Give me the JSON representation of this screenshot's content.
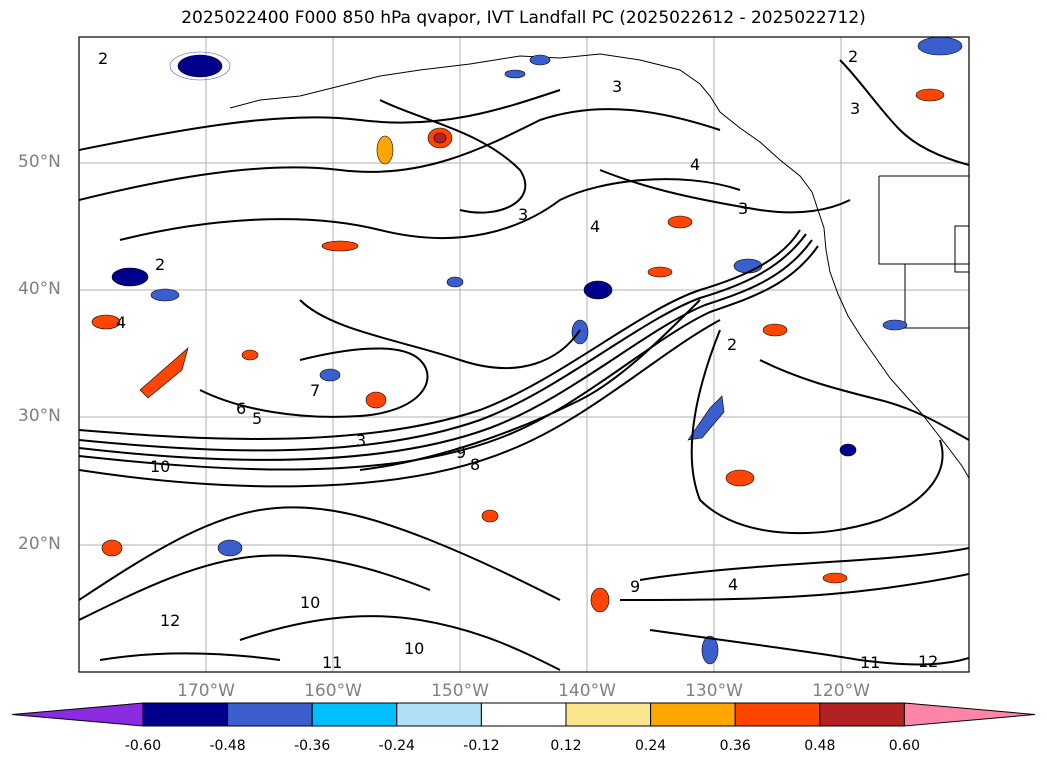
{
  "title": "2025022400 F000 850 hPa qvapor, IVT Landfall PC (2025022612 - 2025022712)",
  "map": {
    "lat_labels": [
      "50°N",
      "40°N",
      "30°N",
      "20°N"
    ],
    "lon_labels": [
      "170°W",
      "160°W",
      "150°W",
      "140°W",
      "130°W",
      "120°W"
    ],
    "lat_range": [
      10,
      60
    ],
    "lon_range": [
      -180,
      -110
    ],
    "gridlines": true,
    "contour_labels": [
      "2",
      "3",
      "4",
      "5",
      "6",
      "7",
      "8",
      "9",
      "10",
      "11",
      "12"
    ]
  },
  "colorbar": {
    "ticks": [
      "-0.60",
      "-0.48",
      "-0.36",
      "-0.24",
      "-0.12",
      "0.12",
      "0.24",
      "0.36",
      "0.48",
      "0.60"
    ],
    "colors": [
      "#8a2be2",
      "#00008b",
      "#3a5fcd",
      "#00bfff",
      "#b0e0f6",
      "#ffffff",
      "#fce68c",
      "#ffa500",
      "#ff4500",
      "#b22222",
      "#ff85a8"
    ],
    "extend": "both"
  }
}
